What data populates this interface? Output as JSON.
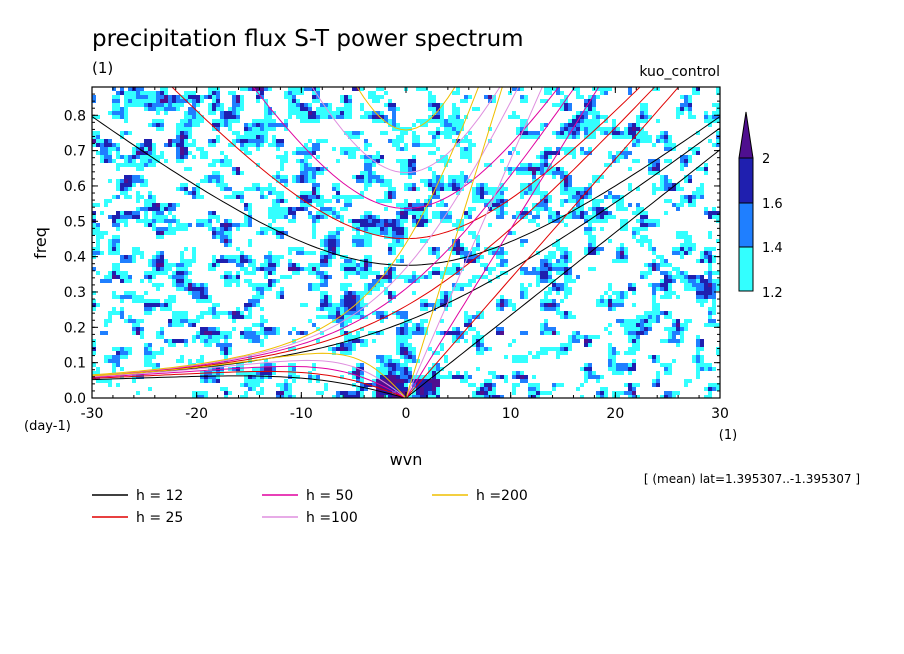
{
  "chart_data": {
    "type": "heatmap",
    "title": "precipitation flux S-T power spectrum",
    "subtitle_left": "(1)",
    "subtitle_right": "kuo_control",
    "xlabel": "wvn",
    "ylabel": "freq",
    "x_unit": "(1)",
    "y_unit": "(day-1)",
    "xlim": [
      -30,
      30
    ],
    "ylim": [
      0,
      0.88
    ],
    "x_ticks": [
      -30,
      -20,
      -10,
      0,
      10,
      20,
      30
    ],
    "x_tick_labels": [
      "-30",
      "-20",
      "-10",
      "0",
      "10",
      "20",
      "30"
    ],
    "y_ticks": [
      0.0,
      0.1,
      0.2,
      0.3,
      0.4,
      0.5,
      0.6,
      0.7,
      0.8
    ],
    "y_tick_labels": [
      "0.0",
      "0.1",
      "0.2",
      "0.3",
      "0.4",
      "0.5",
      "0.6",
      "0.7",
      "0.8"
    ],
    "colorbar": {
      "levels": [
        1.2,
        1.4,
        1.6,
        2
      ],
      "level_labels": [
        "1.2",
        "1.4",
        "1.6",
        "2"
      ],
      "colors": [
        "#33ffff",
        "#1f7fff",
        "#1f1faf",
        "#4f0f8f"
      ]
    },
    "note": "[ (mean) lat=1.395307..-1.395307 ]",
    "dispersion_curves": [
      {
        "label": "h = 12",
        "h": 12,
        "color": "#000000"
      },
      {
        "label": "h = 25",
        "h": 25,
        "color": "#e00000"
      },
      {
        "label": "h = 50",
        "h": 50,
        "color": "#e0009f"
      },
      {
        "label": "h =100",
        "h": 100,
        "color": "#df8fdf"
      },
      {
        "label": "h =200",
        "h": 200,
        "color": "#efbf00"
      }
    ]
  }
}
